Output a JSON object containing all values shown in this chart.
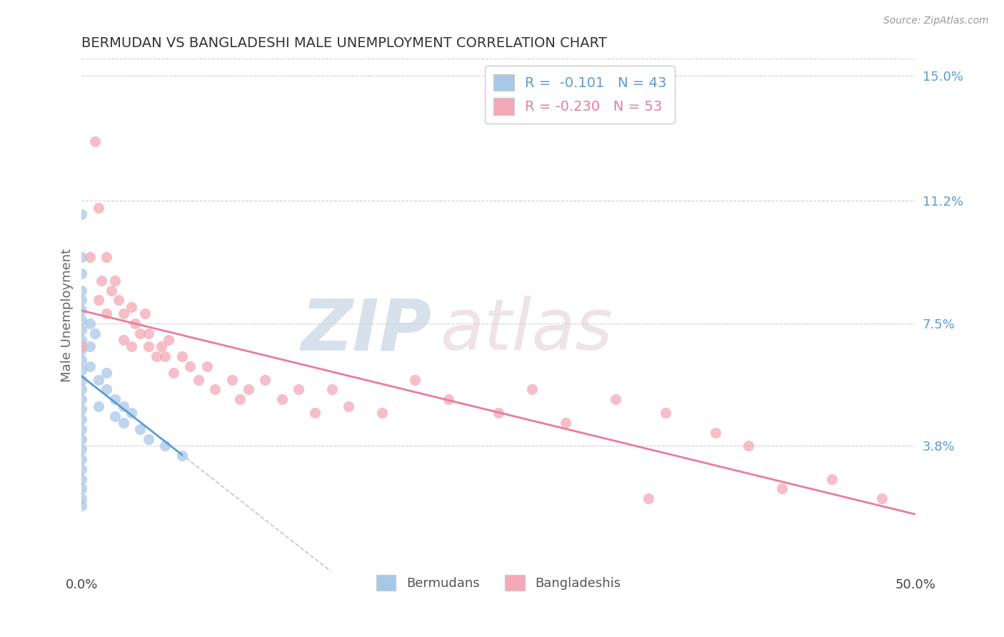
{
  "title": "BERMUDAN VS BANGLADESHI MALE UNEMPLOYMENT CORRELATION CHART",
  "source": "Source: ZipAtlas.com",
  "ylabel": "Male Unemployment",
  "watermark_zip": "ZIP",
  "watermark_atlas": "atlas",
  "xlim": [
    0.0,
    0.5
  ],
  "ylim": [
    0.0,
    0.155
  ],
  "xticks": [
    0.0,
    0.5
  ],
  "xtick_labels": [
    "0.0%",
    "50.0%"
  ],
  "yticks_right": [
    0.038,
    0.075,
    0.112,
    0.15
  ],
  "ytick_labels_right": [
    "3.8%",
    "7.5%",
    "11.2%",
    "15.0%"
  ],
  "bermuda_R": -0.101,
  "bermuda_N": 43,
  "bangladesh_R": -0.23,
  "bangladesh_N": 53,
  "bermuda_color": "#a8c8e8",
  "bangladesh_color": "#f4a8b8",
  "bermuda_line_color": "#5b9bd5",
  "bangladesh_line_color": "#e87d9a",
  "dashed_line_color": "#b0b8c8",
  "grid_color": "#d0d0d0",
  "background_color": "#ffffff",
  "legend_label_1": "Bermudans",
  "legend_label_2": "Bangladeshis",
  "bermuda_x": [
    0.0,
    0.0,
    0.0,
    0.0,
    0.0,
    0.0,
    0.0,
    0.0,
    0.0,
    0.0,
    0.0,
    0.0,
    0.0,
    0.0,
    0.0,
    0.0,
    0.0,
    0.0,
    0.0,
    0.0,
    0.0,
    0.0,
    0.0,
    0.0,
    0.0,
    0.0,
    0.005,
    0.005,
    0.005,
    0.008,
    0.01,
    0.01,
    0.015,
    0.015,
    0.02,
    0.02,
    0.025,
    0.025,
    0.03,
    0.035,
    0.04,
    0.05,
    0.06
  ],
  "bermuda_y": [
    0.108,
    0.095,
    0.09,
    0.085,
    0.082,
    0.079,
    0.076,
    0.073,
    0.07,
    0.067,
    0.064,
    0.061,
    0.058,
    0.055,
    0.052,
    0.049,
    0.046,
    0.043,
    0.04,
    0.037,
    0.034,
    0.031,
    0.028,
    0.025,
    0.022,
    0.02,
    0.075,
    0.068,
    0.062,
    0.072,
    0.058,
    0.05,
    0.06,
    0.055,
    0.052,
    0.047,
    0.05,
    0.045,
    0.048,
    0.043,
    0.04,
    0.038,
    0.035
  ],
  "bangladesh_x": [
    0.0,
    0.005,
    0.008,
    0.01,
    0.01,
    0.012,
    0.015,
    0.015,
    0.018,
    0.02,
    0.022,
    0.025,
    0.025,
    0.03,
    0.03,
    0.032,
    0.035,
    0.038,
    0.04,
    0.04,
    0.045,
    0.048,
    0.05,
    0.052,
    0.055,
    0.06,
    0.065,
    0.07,
    0.075,
    0.08,
    0.09,
    0.095,
    0.1,
    0.11,
    0.12,
    0.13,
    0.14,
    0.15,
    0.16,
    0.18,
    0.2,
    0.22,
    0.25,
    0.27,
    0.29,
    0.32,
    0.35,
    0.38,
    0.34,
    0.4,
    0.42,
    0.45,
    0.48
  ],
  "bangladesh_y": [
    0.068,
    0.095,
    0.13,
    0.11,
    0.082,
    0.088,
    0.095,
    0.078,
    0.085,
    0.088,
    0.082,
    0.078,
    0.07,
    0.08,
    0.068,
    0.075,
    0.072,
    0.078,
    0.068,
    0.072,
    0.065,
    0.068,
    0.065,
    0.07,
    0.06,
    0.065,
    0.062,
    0.058,
    0.062,
    0.055,
    0.058,
    0.052,
    0.055,
    0.058,
    0.052,
    0.055,
    0.048,
    0.055,
    0.05,
    0.048,
    0.058,
    0.052,
    0.048,
    0.055,
    0.045,
    0.052,
    0.048,
    0.042,
    0.022,
    0.038,
    0.025,
    0.028,
    0.022
  ]
}
